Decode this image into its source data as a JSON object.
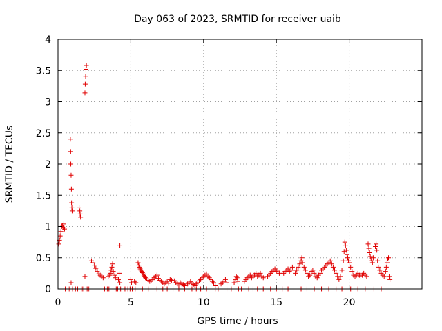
{
  "chart_data": {
    "type": "scatter",
    "title": "Day 063 of 2023, SRMTID for receiver uaib",
    "xlabel": "GPS time / hours",
    "ylabel": "SRMTID / TECUs",
    "xlim": [
      0,
      25
    ],
    "ylim": [
      0,
      4
    ],
    "xticks": [
      0,
      5,
      10,
      15,
      20
    ],
    "yticks": [
      0,
      0.5,
      1,
      1.5,
      2,
      2.5,
      3,
      3.5,
      4
    ],
    "xtick_labels": [
      "0",
      "5",
      "10",
      "15",
      "20"
    ],
    "ytick_labels": [
      "0",
      "0.5",
      "1",
      "1.5",
      "2",
      "2.5",
      "3",
      "3.5",
      "4"
    ],
    "grid": true,
    "marker": "+",
    "color": "#e00000",
    "series": [
      {
        "name": "SRMTID",
        "points": [
          [
            0.05,
            0.72
          ],
          [
            0.1,
            0.78
          ],
          [
            0.15,
            0.85
          ],
          [
            0.2,
            0.92
          ],
          [
            0.25,
            1.0
          ],
          [
            0.3,
            1.02
          ],
          [
            0.35,
            0.98
          ],
          [
            0.4,
            1.04
          ],
          [
            0.45,
            0.96
          ],
          [
            0.5,
            0.0
          ],
          [
            0.7,
            0.0
          ],
          [
            0.8,
            0.0
          ],
          [
            0.85,
            2.4
          ],
          [
            0.87,
            2.2
          ],
          [
            0.88,
            2.0
          ],
          [
            0.9,
            1.82
          ],
          [
            0.92,
            1.6
          ],
          [
            0.93,
            1.38
          ],
          [
            0.95,
            1.3
          ],
          [
            0.97,
            1.25
          ],
          [
            0.9,
            0.1
          ],
          [
            1.0,
            0.0
          ],
          [
            1.2,
            0.0
          ],
          [
            1.35,
            0.0
          ],
          [
            1.45,
            1.3
          ],
          [
            1.5,
            1.25
          ],
          [
            1.52,
            1.2
          ],
          [
            1.55,
            1.15
          ],
          [
            1.6,
            0.0
          ],
          [
            1.7,
            0.0
          ],
          [
            1.85,
            3.14
          ],
          [
            1.87,
            3.28
          ],
          [
            1.9,
            3.4
          ],
          [
            1.92,
            3.52
          ],
          [
            1.95,
            3.58
          ],
          [
            1.85,
            0.2
          ],
          [
            2.0,
            0.0
          ],
          [
            2.1,
            0.0
          ],
          [
            2.2,
            0.0
          ],
          [
            2.3,
            0.45
          ],
          [
            2.4,
            0.42
          ],
          [
            2.5,
            0.38
          ],
          [
            2.6,
            0.33
          ],
          [
            2.7,
            0.28
          ],
          [
            2.8,
            0.24
          ],
          [
            2.9,
            0.22
          ],
          [
            3.0,
            0.2
          ],
          [
            3.1,
            0.18
          ],
          [
            3.2,
            0.0
          ],
          [
            3.3,
            0.0
          ],
          [
            3.4,
            0.0
          ],
          [
            3.5,
            0.0
          ],
          [
            3.45,
            0.2
          ],
          [
            3.55,
            0.22
          ],
          [
            3.6,
            0.25
          ],
          [
            3.65,
            0.3
          ],
          [
            3.7,
            0.35
          ],
          [
            3.75,
            0.4
          ],
          [
            3.8,
            0.28
          ],
          [
            3.9,
            0.22
          ],
          [
            3.95,
            0.18
          ],
          [
            4.0,
            0.0
          ],
          [
            4.1,
            0.0
          ],
          [
            4.2,
            0.0
          ],
          [
            4.3,
            0.0
          ],
          [
            4.25,
            0.7
          ],
          [
            4.2,
            0.25
          ],
          [
            4.15,
            0.15
          ],
          [
            4.25,
            0.1
          ],
          [
            4.6,
            0.0
          ],
          [
            4.8,
            0.0
          ],
          [
            4.95,
            0.0
          ],
          [
            5.0,
            0.15
          ],
          [
            5.05,
            0.1
          ],
          [
            5.1,
            0.0
          ],
          [
            5.25,
            0.12
          ],
          [
            5.35,
            0.1
          ],
          [
            5.5,
            0.42
          ],
          [
            5.55,
            0.38
          ],
          [
            5.6,
            0.35
          ],
          [
            5.65,
            0.32
          ],
          [
            5.7,
            0.3
          ],
          [
            5.75,
            0.28
          ],
          [
            5.8,
            0.26
          ],
          [
            5.85,
            0.24
          ],
          [
            5.9,
            0.22
          ],
          [
            5.95,
            0.2
          ],
          [
            6.0,
            0.18
          ],
          [
            6.1,
            0.16
          ],
          [
            6.2,
            0.14
          ],
          [
            6.3,
            0.12
          ],
          [
            6.4,
            0.13
          ],
          [
            6.5,
            0.15
          ],
          [
            6.6,
            0.18
          ],
          [
            6.7,
            0.2
          ],
          [
            6.8,
            0.22
          ],
          [
            6.9,
            0.17
          ],
          [
            7.0,
            0.14
          ],
          [
            7.1,
            0.12
          ],
          [
            7.2,
            0.1
          ],
          [
            7.3,
            0.08
          ],
          [
            7.4,
            0.1
          ],
          [
            7.5,
            0.12
          ],
          [
            7.6,
            0.09
          ],
          [
            7.7,
            0.15
          ],
          [
            7.8,
            0.14
          ],
          [
            7.9,
            0.16
          ],
          [
            8.0,
            0.13
          ],
          [
            8.1,
            0.1
          ],
          [
            8.2,
            0.08
          ],
          [
            8.3,
            0.06
          ],
          [
            8.4,
            0.1
          ],
          [
            8.5,
            0.08
          ],
          [
            8.6,
            0.07
          ],
          [
            8.7,
            0.05
          ],
          [
            8.8,
            0.06
          ],
          [
            8.9,
            0.08
          ],
          [
            9.0,
            0.1
          ],
          [
            9.1,
            0.12
          ],
          [
            9.2,
            0.09
          ],
          [
            9.3,
            0.07
          ],
          [
            9.4,
            0.05
          ],
          [
            9.5,
            0.08
          ],
          [
            9.6,
            0.1
          ],
          [
            9.7,
            0.13
          ],
          [
            9.8,
            0.15
          ],
          [
            9.9,
            0.18
          ],
          [
            10.0,
            0.2
          ],
          [
            10.1,
            0.22
          ],
          [
            10.2,
            0.24
          ],
          [
            10.3,
            0.2
          ],
          [
            10.4,
            0.18
          ],
          [
            10.5,
            0.15
          ],
          [
            10.6,
            0.12
          ],
          [
            10.7,
            0.1
          ],
          [
            10.8,
            0.05
          ],
          [
            11.2,
            0.08
          ],
          [
            11.3,
            0.1
          ],
          [
            11.4,
            0.12
          ],
          [
            11.5,
            0.15
          ],
          [
            11.6,
            0.1
          ],
          [
            12.1,
            0.1
          ],
          [
            12.2,
            0.15
          ],
          [
            12.25,
            0.2
          ],
          [
            12.3,
            0.18
          ],
          [
            12.35,
            0.12
          ],
          [
            12.8,
            0.12
          ],
          [
            12.9,
            0.15
          ],
          [
            13.0,
            0.18
          ],
          [
            13.1,
            0.2
          ],
          [
            13.2,
            0.22
          ],
          [
            13.3,
            0.18
          ],
          [
            13.4,
            0.2
          ],
          [
            13.5,
            0.22
          ],
          [
            13.6,
            0.25
          ],
          [
            13.7,
            0.2
          ],
          [
            13.8,
            0.22
          ],
          [
            13.9,
            0.25
          ],
          [
            14.0,
            0.2
          ],
          [
            14.1,
            0.18
          ],
          [
            14.4,
            0.2
          ],
          [
            14.5,
            0.22
          ],
          [
            14.6,
            0.25
          ],
          [
            14.7,
            0.28
          ],
          [
            14.8,
            0.3
          ],
          [
            14.9,
            0.32
          ],
          [
            15.0,
            0.28
          ],
          [
            15.1,
            0.3
          ],
          [
            15.2,
            0.25
          ],
          [
            15.5,
            0.25
          ],
          [
            15.6,
            0.28
          ],
          [
            15.7,
            0.3
          ],
          [
            15.8,
            0.32
          ],
          [
            15.9,
            0.28
          ],
          [
            16.0,
            0.3
          ],
          [
            16.1,
            0.35
          ],
          [
            16.2,
            0.3
          ],
          [
            16.3,
            0.25
          ],
          [
            16.4,
            0.3
          ],
          [
            16.5,
            0.35
          ],
          [
            16.6,
            0.4
          ],
          [
            16.7,
            0.45
          ],
          [
            16.75,
            0.5
          ],
          [
            16.8,
            0.42
          ],
          [
            16.9,
            0.35
          ],
          [
            17.0,
            0.3
          ],
          [
            17.1,
            0.25
          ],
          [
            17.2,
            0.2
          ],
          [
            17.3,
            0.22
          ],
          [
            17.4,
            0.28
          ],
          [
            17.5,
            0.3
          ],
          [
            17.6,
            0.25
          ],
          [
            17.7,
            0.2
          ],
          [
            17.8,
            0.18
          ],
          [
            17.9,
            0.22
          ],
          [
            18.0,
            0.25
          ],
          [
            18.1,
            0.3
          ],
          [
            18.2,
            0.32
          ],
          [
            18.3,
            0.35
          ],
          [
            18.4,
            0.38
          ],
          [
            18.5,
            0.4
          ],
          [
            18.6,
            0.42
          ],
          [
            18.7,
            0.45
          ],
          [
            18.8,
            0.4
          ],
          [
            18.9,
            0.35
          ],
          [
            19.0,
            0.3
          ],
          [
            19.1,
            0.25
          ],
          [
            19.2,
            0.2
          ],
          [
            19.3,
            0.15
          ],
          [
            19.4,
            0.2
          ],
          [
            19.5,
            0.3
          ],
          [
            19.6,
            0.45
          ],
          [
            19.65,
            0.6
          ],
          [
            19.7,
            0.75
          ],
          [
            19.75,
            0.7
          ],
          [
            19.8,
            0.62
          ],
          [
            19.85,
            0.55
          ],
          [
            19.9,
            0.5
          ],
          [
            19.95,
            0.45
          ],
          [
            20.0,
            0.42
          ],
          [
            20.1,
            0.35
          ],
          [
            20.2,
            0.28
          ],
          [
            20.3,
            0.22
          ],
          [
            20.4,
            0.2
          ],
          [
            20.5,
            0.22
          ],
          [
            20.6,
            0.25
          ],
          [
            20.7,
            0.22
          ],
          [
            20.8,
            0.2
          ],
          [
            20.9,
            0.22
          ],
          [
            21.0,
            0.25
          ],
          [
            21.1,
            0.22
          ],
          [
            21.2,
            0.2
          ],
          [
            21.3,
            0.72
          ],
          [
            21.35,
            0.65
          ],
          [
            21.4,
            0.58
          ],
          [
            21.45,
            0.52
          ],
          [
            21.5,
            0.48
          ],
          [
            21.55,
            0.45
          ],
          [
            21.6,
            0.42
          ],
          [
            21.65,
            0.5
          ],
          [
            21.8,
            0.68
          ],
          [
            21.85,
            0.72
          ],
          [
            21.9,
            0.62
          ],
          [
            21.95,
            0.45
          ],
          [
            22.0,
            0.35
          ],
          [
            22.1,
            0.3
          ],
          [
            22.2,
            0.25
          ],
          [
            22.3,
            0.22
          ],
          [
            22.4,
            0.2
          ],
          [
            22.5,
            0.28
          ],
          [
            22.55,
            0.35
          ],
          [
            22.6,
            0.42
          ],
          [
            22.65,
            0.48
          ],
          [
            22.7,
            0.5
          ],
          [
            22.75,
            0.2
          ],
          [
            22.8,
            0.15
          ],
          [
            5.3,
            0.0
          ],
          [
            5.8,
            0.0
          ],
          [
            6.2,
            0.0
          ],
          [
            6.8,
            0.0
          ],
          [
            7.2,
            0.0
          ],
          [
            7.5,
            0.0
          ],
          [
            7.9,
            0.0
          ],
          [
            8.3,
            0.0
          ],
          [
            8.7,
            0.0
          ],
          [
            9.2,
            0.0
          ],
          [
            9.5,
            0.0
          ],
          [
            9.8,
            0.0
          ],
          [
            10.2,
            0.0
          ],
          [
            10.8,
            0.0
          ],
          [
            11.0,
            0.0
          ],
          [
            11.6,
            0.0
          ],
          [
            11.9,
            0.0
          ],
          [
            12.4,
            0.0
          ],
          [
            12.6,
            0.0
          ],
          [
            13.1,
            0.0
          ],
          [
            13.4,
            0.0
          ],
          [
            13.7,
            0.0
          ],
          [
            14.1,
            0.0
          ],
          [
            14.6,
            0.0
          ],
          [
            15.0,
            0.0
          ],
          [
            15.4,
            0.0
          ],
          [
            15.8,
            0.0
          ],
          [
            16.2,
            0.0
          ],
          [
            16.7,
            0.0
          ],
          [
            17.1,
            0.0
          ],
          [
            17.6,
            0.0
          ],
          [
            18.1,
            0.0
          ],
          [
            18.6,
            0.0
          ],
          [
            19.1,
            0.0
          ],
          [
            19.5,
            0.0
          ],
          [
            20.1,
            0.0
          ],
          [
            20.6,
            0.0
          ],
          [
            21.1,
            0.0
          ],
          [
            21.7,
            0.0
          ],
          [
            22.2,
            0.0
          ]
        ]
      }
    ]
  }
}
